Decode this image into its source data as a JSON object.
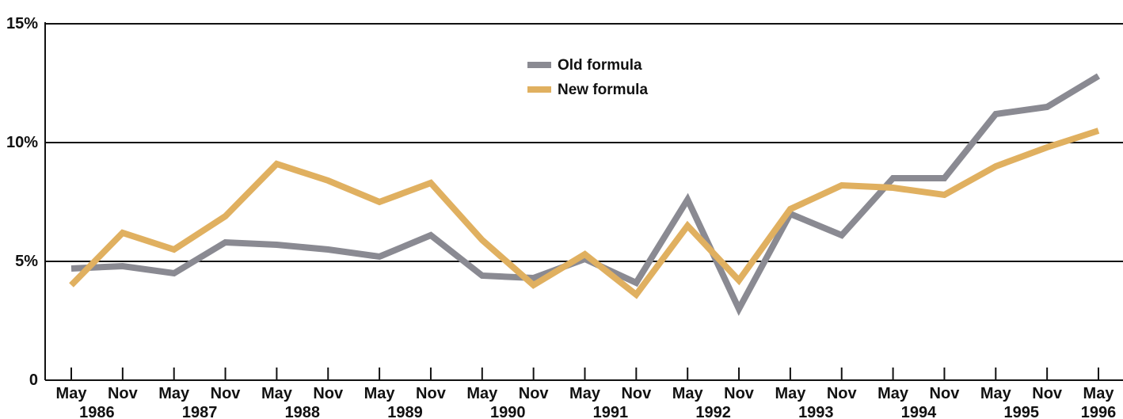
{
  "chart_data": {
    "type": "line",
    "title": "",
    "xlabel": "",
    "ylabel": "",
    "ylim": [
      0,
      15
    ],
    "y_ticks": [
      {
        "value": 0,
        "label": "0"
      },
      {
        "value": 5,
        "label": "5%"
      },
      {
        "value": 10,
        "label": "10%"
      },
      {
        "value": 15,
        "label": "15%"
      }
    ],
    "x_tick_labels": [
      "May",
      "Nov",
      "May",
      "Nov",
      "May",
      "Nov",
      "May",
      "Nov",
      "May",
      "Nov",
      "May",
      "Nov",
      "May",
      "Nov",
      "May",
      "Nov",
      "May",
      "Nov",
      "May",
      "Nov",
      "May"
    ],
    "x_year_labels": [
      "1986",
      "1987",
      "1988",
      "1989",
      "1990",
      "1991",
      "1992",
      "1993",
      "1994",
      "1995",
      "1996"
    ],
    "categories": [
      "May 1986",
      "Nov 1986",
      "May 1987",
      "Nov 1987",
      "May 1988",
      "Nov 1988",
      "May 1989",
      "Nov 1989",
      "May 1990",
      "Nov 1990",
      "May 1991",
      "Nov 1991",
      "May 1992",
      "Nov 1992",
      "May 1993",
      "Nov 1993",
      "May 1994",
      "Nov 1994",
      "May 1995",
      "Nov 1995",
      "May 1996"
    ],
    "grid": true,
    "legend_position": "top-center",
    "series": [
      {
        "name": "Old formula",
        "color": "#8a8a92",
        "values": [
          4.7,
          4.8,
          4.5,
          5.8,
          5.7,
          5.5,
          5.2,
          6.1,
          4.4,
          4.3,
          5.1,
          4.1,
          7.6,
          3.0,
          7.0,
          6.1,
          8.5,
          8.5,
          11.2,
          11.5,
          12.8
        ]
      },
      {
        "name": "New formula",
        "color": "#e0b060",
        "values": [
          4.0,
          6.2,
          5.5,
          6.9,
          9.1,
          8.4,
          7.5,
          8.3,
          5.9,
          4.0,
          5.3,
          3.6,
          6.5,
          4.2,
          7.2,
          8.2,
          8.1,
          7.8,
          9.0,
          9.8,
          10.5
        ]
      }
    ]
  }
}
